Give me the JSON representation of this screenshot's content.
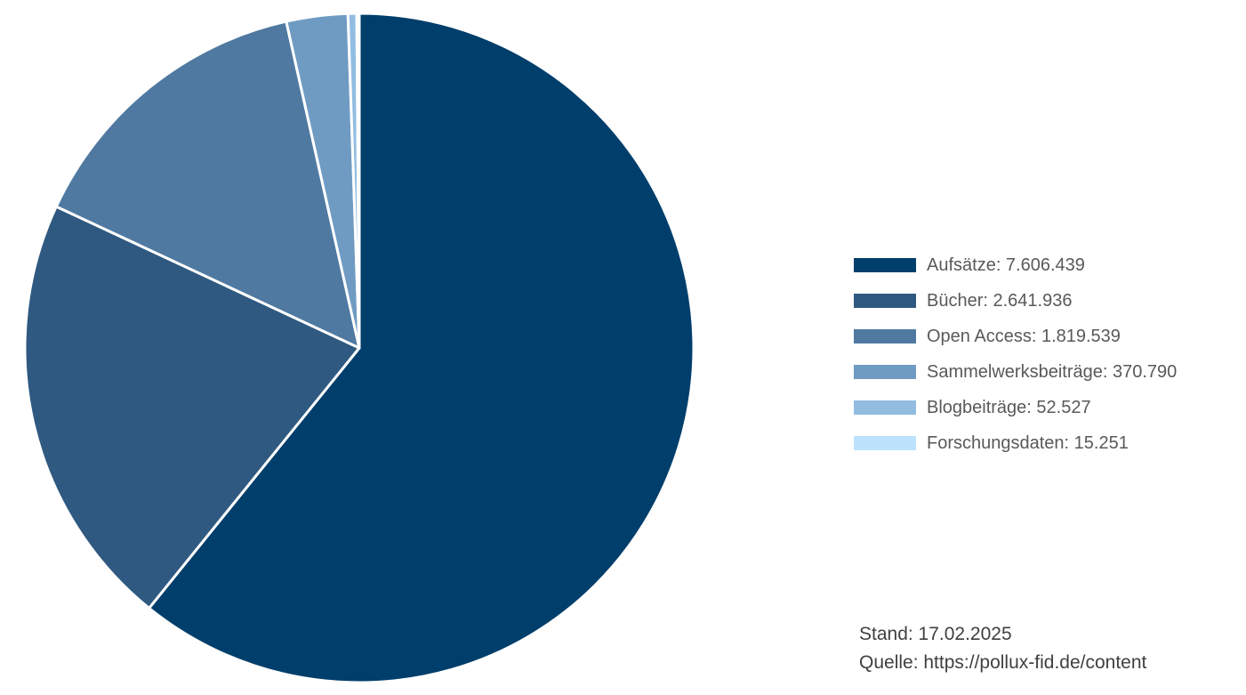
{
  "chart_data": {
    "type": "pie",
    "title": "",
    "start_angle_deg": 0,
    "direction": "clockwise",
    "slices": [
      {
        "label": "Aufsätze",
        "value": 7606439,
        "display": "7.606.439",
        "color": "#003e6b"
      },
      {
        "label": "Bücher",
        "value": 2641936,
        "display": "2.641.936",
        "color": "#2f5980"
      },
      {
        "label": "Open Access",
        "value": 1819539,
        "display": "1.819.539",
        "color": "#4f79a1"
      },
      {
        "label": "Sammelwerksbeiträge",
        "value": 370790,
        "display": "370.790",
        "color": "#6f9bc2"
      },
      {
        "label": "Blogbeiträge",
        "value": 52527,
        "display": "52.527",
        "color": "#92bde1"
      },
      {
        "label": "Forschungsdaten",
        "value": 15251,
        "display": "15.251",
        "color": "#bde2fd"
      }
    ],
    "legend": {
      "position": "right",
      "items": [
        "Aufsätze: 7.606.439",
        "Bücher: 2.641.936",
        "Open Access: 1.819.539",
        "Sammelwerksbeiträge: 370.790",
        "Blogbeiträge: 52.527",
        "Forschungsdaten: 15.251"
      ]
    }
  },
  "footer": {
    "stand": "Stand: 17.02.2025",
    "source": "Quelle: https://pollux-fid.de/content"
  }
}
